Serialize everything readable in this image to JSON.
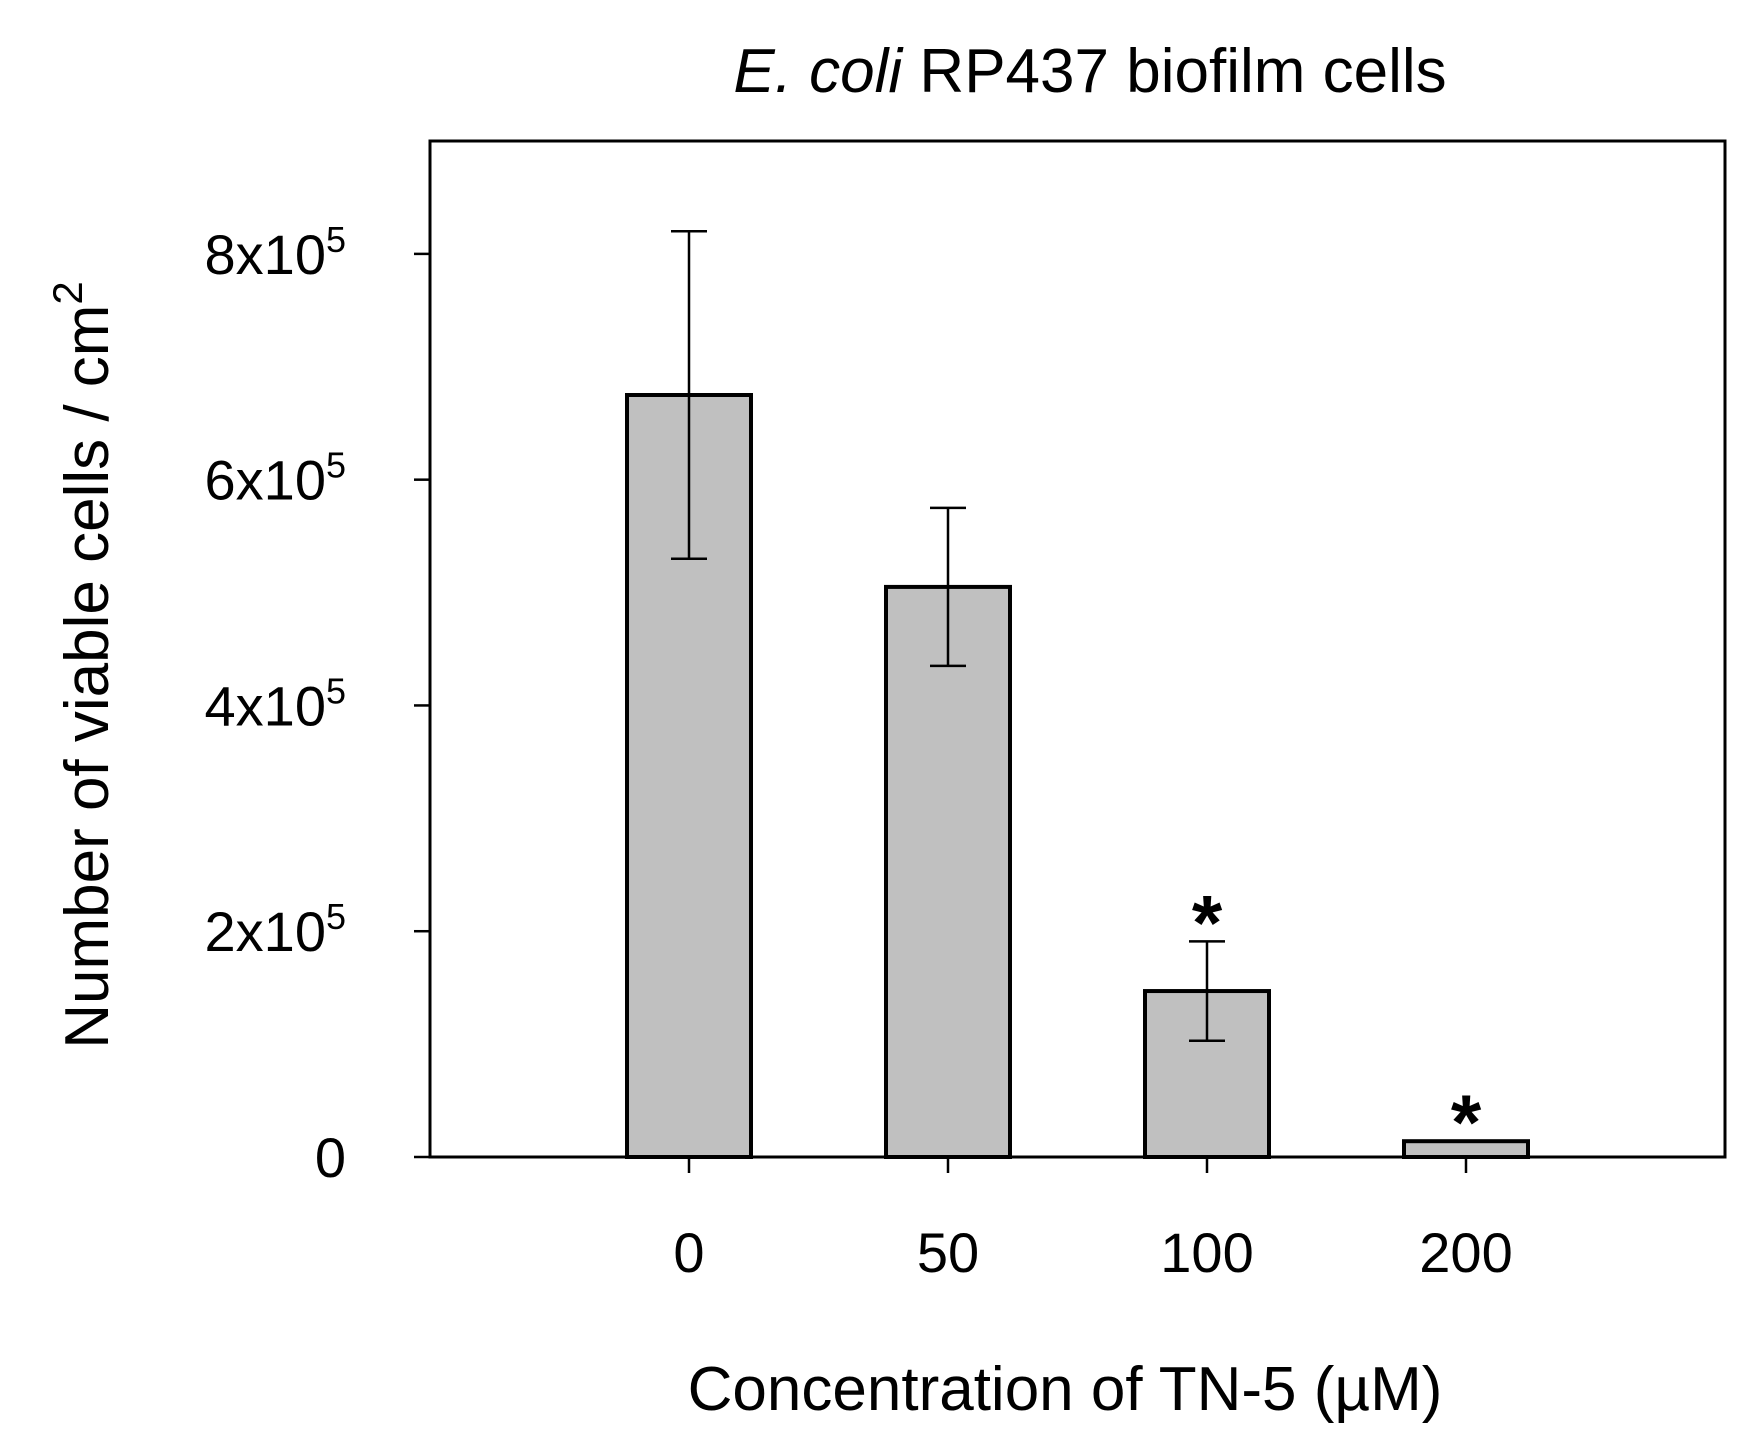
{
  "chart_data": {
    "type": "bar",
    "title_italic": "E. coli",
    "title_rest": " RP437 biofilm cells",
    "xlabel": "Concentration of TN-5 (µM)",
    "ylabel": "Number of viable cells / cm",
    "ylabel_sup": "2",
    "categories": [
      "0",
      "50",
      "100",
      "200"
    ],
    "values": [
      675000,
      505000,
      147000,
      14000
    ],
    "errors": [
      145000,
      70000,
      44000,
      0
    ],
    "significance": [
      "",
      "",
      "*",
      "*"
    ],
    "ylim": [
      0,
      900000
    ],
    "yticks": [
      {
        "value": 0,
        "base": "0",
        "exp": ""
      },
      {
        "value": 200000,
        "base": "2x10",
        "exp": "5"
      },
      {
        "value": 400000,
        "base": "4x10",
        "exp": "5"
      },
      {
        "value": 600000,
        "base": "6x10",
        "exp": "5"
      },
      {
        "value": 800000,
        "base": "8x10",
        "exp": "5"
      }
    ],
    "bar_color": "#c0c0c0",
    "grid": false
  }
}
